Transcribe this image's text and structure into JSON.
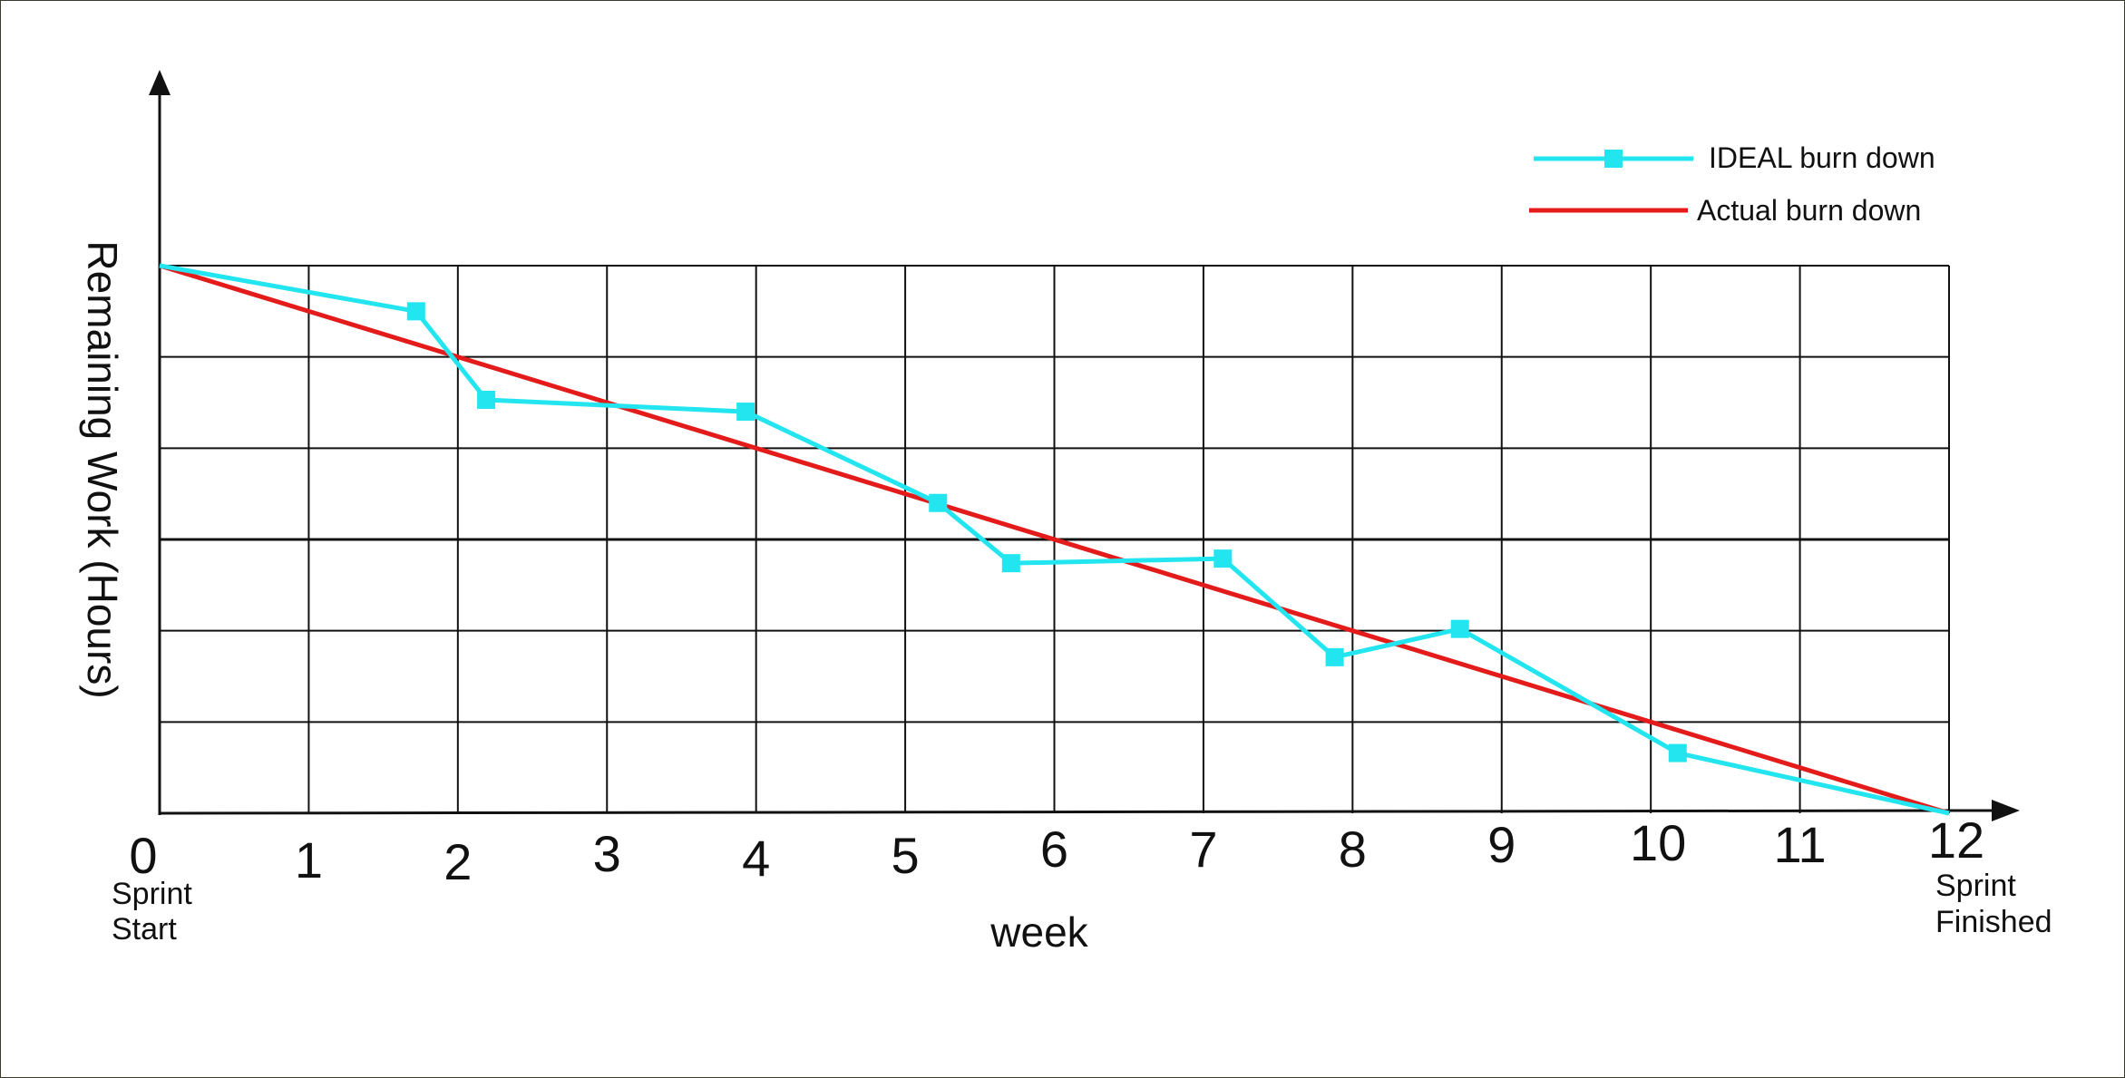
{
  "chart_data": {
    "type": "line",
    "xlabel": "week",
    "ylabel": "Remaining Work (Hours)",
    "x_ticks": [
      "0",
      "1",
      "2",
      "3",
      "4",
      "5",
      "6",
      "7",
      "8",
      "9",
      "10",
      "11",
      "12"
    ],
    "x_tick_notes": {
      "start": "Sprint\nStart",
      "end": "Sprint\nFinished"
    },
    "xlim": [
      0,
      12
    ],
    "ylim": [
      0,
      6
    ],
    "grid": true,
    "legend_position": "top-right",
    "series": [
      {
        "name": "IDEAL burn down",
        "color": "#22e5ef",
        "marker": "square",
        "x": [
          0,
          1.72,
          2.19,
          3.93,
          5.22,
          5.71,
          7.13,
          7.88,
          8.72,
          10.18,
          12
        ],
        "y": [
          6.0,
          5.5,
          4.53,
          4.4,
          3.4,
          2.74,
          2.79,
          1.71,
          2.02,
          0.66,
          0
        ]
      },
      {
        "name": "Actual burn down",
        "color": "#e31b1b",
        "x": [
          0,
          12
        ],
        "y": [
          6.0,
          0
        ]
      }
    ]
  }
}
